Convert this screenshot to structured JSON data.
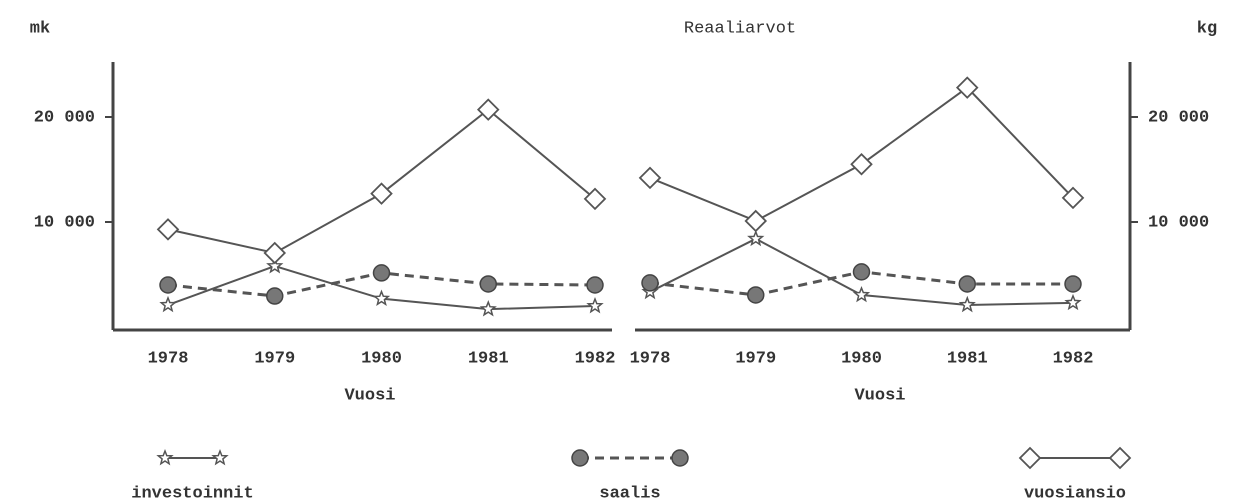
{
  "chart_data": [
    {
      "type": "line",
      "title": "Reaaliarvot",
      "ylabel": "mk",
      "xlabel": "Vuosi",
      "categories": [
        "1978",
        "1979",
        "1980",
        "1981",
        "1982"
      ],
      "ylim": [
        0,
        25000
      ],
      "yticks": [
        {
          "value": 10000,
          "label": "10 000"
        },
        {
          "value": 20000,
          "label": "20 000"
        }
      ],
      "series": [
        {
          "name": "investoinnit",
          "color": "#555555",
          "marker": "star",
          "linestyle": "solid",
          "values": [
            2100,
            5800,
            2700,
            1700,
            2000
          ]
        },
        {
          "name": "saalis",
          "color": "#555555",
          "marker": "circle",
          "linestyle": "dashed",
          "values": [
            4000,
            2950,
            5150,
            4100,
            4000
          ]
        },
        {
          "name": "vuosiansio",
          "color": "#555555",
          "marker": "diamond",
          "linestyle": "solid",
          "values": [
            9300,
            7050,
            12700,
            20700,
            12200
          ]
        }
      ]
    },
    {
      "type": "line",
      "ylabel": "kg",
      "xlabel": "Vuosi",
      "categories": [
        "1978",
        "1979",
        "1980",
        "1981",
        "1982"
      ],
      "ylim": [
        0,
        25000
      ],
      "yticks": [
        {
          "value": 10000,
          "label": "10 000"
        },
        {
          "value": 20000,
          "label": "20 000"
        }
      ],
      "series": [
        {
          "color": "#555555",
          "marker": "star",
          "linestyle": "solid",
          "values": [
            3350,
            8400,
            3050,
            2100,
            2300
          ]
        },
        {
          "color": "#555555",
          "marker": "circle",
          "linestyle": "dashed",
          "values": [
            4200,
            3050,
            5250,
            4100,
            4100
          ]
        },
        {
          "color": "#555555",
          "marker": "diamond",
          "linestyle": "solid",
          "values": [
            14200,
            10100,
            15500,
            22800,
            12300
          ]
        }
      ]
    }
  ]
}
